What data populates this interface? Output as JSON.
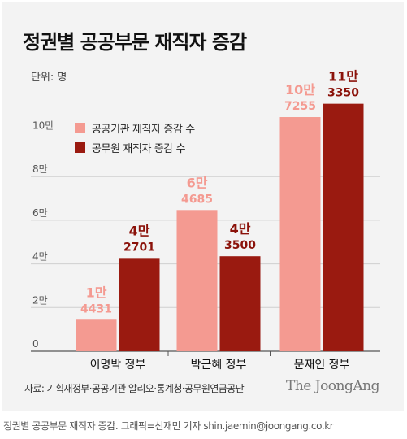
{
  "chart_data": {
    "type": "bar",
    "title": "정권별 공공부문 재직자 증감",
    "unit_label": "단위: 명",
    "categories": [
      "이명박 정부",
      "박근혜 정부",
      "문재인 정부"
    ],
    "series": [
      {
        "name": "공공기관 재직자 증감 수",
        "color": "#f49a91",
        "label_color": "#f49a91",
        "values": [
          14431,
          64685,
          107255
        ],
        "labels_top": [
          "1만",
          "6만",
          "10만"
        ],
        "labels_bottom": [
          "4431",
          "4685",
          "7255"
        ]
      },
      {
        "name": "공무원 재직자 증감 수",
        "color": "#9a1a10",
        "label_color": "#8b120a",
        "values": [
          42701,
          43500,
          113350
        ],
        "labels_top": [
          "4만",
          "4만",
          "11만"
        ],
        "labels_bottom": [
          "2701",
          "3500",
          "3350"
        ]
      }
    ],
    "yticks": [
      0,
      20000,
      40000,
      60000,
      80000,
      100000
    ],
    "ytick_labels": [
      "0",
      "2만",
      "4만",
      "6만",
      "8만",
      "10만"
    ],
    "ylim": [
      0,
      120000
    ],
    "grid": true,
    "legend_position": "top-left"
  },
  "source": "자료: 기획재정부·공공기관 알리오·통계청·공무원연금공단",
  "brand": "The JoongAng",
  "caption": "정권별 공공부문 재직자 증감. 그래픽=신재민 기자 shin.jaemin@joongang.co.kr"
}
